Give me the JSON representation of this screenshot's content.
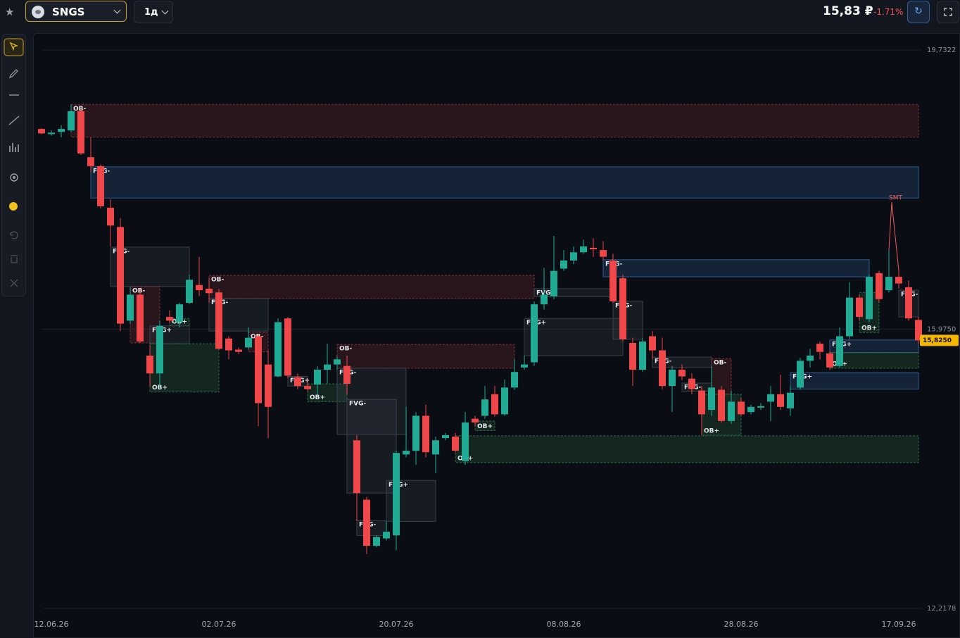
{
  "header": {
    "ticker": "SNGS",
    "timeframe": "1д",
    "price": "15,83 ₽",
    "change": "-1.71%"
  },
  "chart_data": {
    "type": "candlestick",
    "categories": [
      null,
      "12.06.26",
      null,
      null,
      null,
      null,
      null,
      null,
      null,
      null,
      null,
      null,
      null,
      null,
      null,
      null,
      null,
      null,
      "02.07.26",
      null,
      null,
      null,
      null,
      null,
      null,
      null,
      null,
      null,
      null,
      null,
      null,
      null,
      null,
      null,
      null,
      null,
      "20.07.26",
      null,
      null,
      null,
      null,
      null,
      null,
      null,
      null,
      null,
      null,
      null,
      null,
      null,
      null,
      null,
      null,
      "08.08.26",
      null,
      null,
      null,
      null,
      null,
      null,
      null,
      null,
      null,
      null,
      null,
      null,
      null,
      null,
      null,
      null,
      null,
      "28.08.26",
      null,
      null,
      null,
      null,
      null,
      null,
      null,
      null,
      null,
      null,
      null,
      null,
      null,
      null,
      null,
      "17.09.26",
      null,
      null
    ],
    "open": [
      18.67,
      18.6,
      18.63,
      18.65,
      18.91,
      18.29,
      18.17,
      17.61,
      17.35,
      16.09,
      16.44,
      15.62,
      15.38,
      16.14,
      16.07,
      16.33,
      16.57,
      16.52,
      16.47,
      15.85,
      15.7,
      15.73,
      15.88,
      15.5,
      15.34,
      16.12,
      15.33,
      15.21,
      15.23,
      15.43,
      15.5,
      15.48,
      14.48,
      13.68,
      13.06,
      13.16,
      13.2,
      14.29,
      14.34,
      14.81,
      14.29,
      14.51,
      14.53,
      14.2,
      14.77,
      14.81,
      15.1,
      14.83,
      15.19,
      15.46,
      15.53,
      16.31,
      16.42,
      16.79,
      16.9,
      17.01,
      17.07,
      17.04,
      16.9,
      16.66,
      15.79,
      15.43,
      15.88,
      15.69,
      15.21,
      15.43,
      15.31,
      15.15,
      14.89,
      15.16,
      14.74,
      15.0,
      14.86,
      14.92,
      15.0,
      15.1,
      14.91,
      15.19,
      15.55,
      15.78,
      15.65,
      15.48,
      15.88,
      16.4,
      16.11,
      16.73,
      16.5,
      16.68,
      16.54,
      16.1
    ],
    "high": [
      18.68,
      18.65,
      18.72,
      19.0,
      18.94,
      18.56,
      18.19,
      17.72,
      17.47,
      16.54,
      16.52,
      15.76,
      16.09,
      16.23,
      16.33,
      16.71,
      16.95,
      16.66,
      16.52,
      15.88,
      15.73,
      16.0,
      15.9,
      15.69,
      16.12,
      16.14,
      15.38,
      15.29,
      15.48,
      15.78,
      15.62,
      15.62,
      14.55,
      13.72,
      13.2,
      13.39,
      14.34,
      14.93,
      14.86,
      14.96,
      14.53,
      14.58,
      14.58,
      14.86,
      14.81,
      15.21,
      15.21,
      15.3,
      15.57,
      15.62,
      16.35,
      16.8,
      17.23,
      17.04,
      17.09,
      17.18,
      17.2,
      17.16,
      16.99,
      16.71,
      15.86,
      15.86,
      15.95,
      15.86,
      15.48,
      15.5,
      15.38,
      15.21,
      15.48,
      15.21,
      15.15,
      15.05,
      14.96,
      14.98,
      15.21,
      15.36,
      15.21,
      15.59,
      15.71,
      15.81,
      15.69,
      16.0,
      16.61,
      16.44,
      16.71,
      16.76,
      17.04,
      16.76,
      16.63,
      16.14
    ],
    "low": [
      18.6,
      18.58,
      18.56,
      18.63,
      18.32,
      18.09,
      17.6,
      17.09,
      15.95,
      16.05,
      15.79,
      15.21,
      15.19,
      16.05,
      16.0,
      16.31,
      16.42,
      16.33,
      15.7,
      15.57,
      15.64,
      15.71,
      14.67,
      14.51,
      15.33,
      15.32,
      15.17,
      15.15,
      15.1,
      15.24,
      15.43,
      15.1,
      13.39,
      12.95,
      13.04,
      13.13,
      13.0,
      14.25,
      14.15,
      14.25,
      14.04,
      14.48,
      14.32,
      14.15,
      14.67,
      14.77,
      14.8,
      14.81,
      15.16,
      15.43,
      15.48,
      16.24,
      16.38,
      16.76,
      16.85,
      16.99,
      16.95,
      16.9,
      16.33,
      15.81,
      15.21,
      15.4,
      15.57,
      15.17,
      14.86,
      15.29,
      15.1,
      14.55,
      14.81,
      14.72,
      14.7,
      14.81,
      14.83,
      14.89,
      14.74,
      14.89,
      14.81,
      15.16,
      15.46,
      15.57,
      15.43,
      15.46,
      15.84,
      16.09,
      16.07,
      16.33,
      16.47,
      16.52,
      16.09,
      15.78
    ],
    "close": [
      18.61,
      18.62,
      18.67,
      18.91,
      18.34,
      18.17,
      17.63,
      17.37,
      16.05,
      16.44,
      15.81,
      15.38,
      16.02,
      16.09,
      16.31,
      16.64,
      16.5,
      16.46,
      15.71,
      15.69,
      15.67,
      15.86,
      14.98,
      14.93,
      16.07,
      15.35,
      15.21,
      15.17,
      15.43,
      15.5,
      15.57,
      15.24,
      13.77,
      13.06,
      13.18,
      13.25,
      14.31,
      14.34,
      14.81,
      14.32,
      14.48,
      14.55,
      14.34,
      14.72,
      14.72,
      15.03,
      14.83,
      15.19,
      15.4,
      15.5,
      16.31,
      16.44,
      16.76,
      16.9,
      17.01,
      17.09,
      17.05,
      16.95,
      16.35,
      15.84,
      15.43,
      15.81,
      15.69,
      15.21,
      15.43,
      15.34,
      15.17,
      14.83,
      15.19,
      14.74,
      15.0,
      14.83,
      14.93,
      14.94,
      15.1,
      14.93,
      15.12,
      15.55,
      15.62,
      15.67,
      15.46,
      15.88,
      16.4,
      16.14,
      16.68,
      16.38,
      16.68,
      16.59,
      16.12,
      15.825
    ],
    "up_color": "#22ab94",
    "down_color": "#f0474a",
    "ylim": [
      12.2178,
      19.7322
    ],
    "yticks": [
      {
        "value": 12.2178,
        "label": "12,2178"
      },
      {
        "value": 15.975,
        "label": "15,9750"
      },
      {
        "value": 19.7322,
        "label": "19,7322"
      }
    ],
    "grid": true,
    "last_price": {
      "value": 15.825,
      "label": "15,8250",
      "color": "#f5b800"
    },
    "zones": [
      {
        "label": "OB-",
        "from": 3,
        "to": 89,
        "top": 19.0,
        "bottom": 18.56,
        "color": "#7a3038"
      },
      {
        "label": "FVG-",
        "from": 5,
        "to": 89,
        "top": 18.16,
        "bottom": 17.74,
        "color": "#2e5d94"
      },
      {
        "label": "FVG-",
        "from": 7,
        "to": 15,
        "top": 17.08,
        "bottom": 16.55,
        "color": "#3b404b"
      },
      {
        "label": "OB-",
        "from": 9,
        "to": 12,
        "top": 16.55,
        "bottom": 15.79,
        "color": "#7a3038"
      },
      {
        "label": "OB+",
        "from": 13,
        "to": 15,
        "top": 16.12,
        "bottom": 16.02,
        "color": "#2a6b45"
      },
      {
        "label": "FVG+",
        "from": 11,
        "to": 15,
        "top": 16.02,
        "bottom": 15.78,
        "color": "#3b404b"
      },
      {
        "label": "OB+",
        "from": 11,
        "to": 18,
        "top": 15.78,
        "bottom": 15.13,
        "color": "#2a6b45"
      },
      {
        "label": "OB-",
        "from": 17,
        "to": 50,
        "top": 16.7,
        "bottom": 16.39,
        "color": "#7a3038"
      },
      {
        "label": "FVG-",
        "from": 17,
        "to": 23,
        "top": 16.39,
        "bottom": 15.95,
        "color": "#3b404b"
      },
      {
        "label": "OB-",
        "from": 21,
        "to": 23,
        "top": 15.93,
        "bottom": 15.67,
        "color": "#7a3038"
      },
      {
        "label": "FVG+",
        "from": 25,
        "to": 27,
        "top": 15.34,
        "bottom": 15.21,
        "color": "#3b404b"
      },
      {
        "label": "OB+",
        "from": 27,
        "to": 31,
        "top": 15.24,
        "bottom": 15.0,
        "color": "#2a6b45"
      },
      {
        "label": "OB-",
        "from": 30,
        "to": 48,
        "top": 15.77,
        "bottom": 15.45,
        "color": "#7a3038"
      },
      {
        "label": "FVG-",
        "from": 30,
        "to": 37,
        "top": 15.45,
        "bottom": 14.56,
        "color": "#3b404b"
      },
      {
        "label": "FVG-",
        "from": 31,
        "to": 36,
        "top": 15.03,
        "bottom": 13.77,
        "color": "#3b404b"
      },
      {
        "label": "FVG-",
        "from": 32,
        "to": 35,
        "top": 13.4,
        "bottom": 13.2,
        "color": "#3b404b"
      },
      {
        "label": "FVG+",
        "from": 35,
        "to": 40,
        "top": 13.94,
        "bottom": 13.39,
        "color": "#3b404b"
      },
      {
        "label": "OB+",
        "from": 42,
        "to": 89,
        "top": 14.54,
        "bottom": 14.18,
        "color": "#2a6b45"
      },
      {
        "label": "OB+",
        "from": 44,
        "to": 46,
        "top": 14.74,
        "bottom": 14.61,
        "color": "#2a6b45"
      },
      {
        "label": "FVG+",
        "from": 49,
        "to": 59,
        "top": 16.12,
        "bottom": 15.62,
        "color": "#3b404b"
      },
      {
        "label": "FVG+",
        "from": 50,
        "to": 58,
        "top": 16.52,
        "bottom": 16.41,
        "color": "#3b404b"
      },
      {
        "label": "FVG-",
        "from": 57,
        "to": 84,
        "top": 16.91,
        "bottom": 16.68,
        "color": "#2e5d94"
      },
      {
        "label": "FVG-",
        "from": 58,
        "to": 61,
        "top": 16.35,
        "bottom": 15.84,
        "color": "#3b404b"
      },
      {
        "label": "FVG-",
        "from": 62,
        "to": 68,
        "top": 15.6,
        "bottom": 15.46,
        "color": "#3b404b"
      },
      {
        "label": "OB-",
        "from": 68,
        "to": 70,
        "top": 15.58,
        "bottom": 15.1,
        "color": "#7a3038"
      },
      {
        "label": "FVG-",
        "from": 65,
        "to": 68,
        "top": 15.25,
        "bottom": 15.14,
        "color": "#3b404b"
      },
      {
        "label": "OB+",
        "from": 67,
        "to": 71,
        "top": 15.1,
        "bottom": 14.55,
        "color": "#2a6b45"
      },
      {
        "label": "FVG+",
        "from": 76,
        "to": 89,
        "top": 15.39,
        "bottom": 15.17,
        "color": "#2e5d94"
      },
      {
        "label": "FVG+",
        "from": 80,
        "to": 89,
        "top": 15.83,
        "bottom": 15.66,
        "color": "#2e5d94"
      },
      {
        "label": "OB+",
        "from": 80,
        "to": 89,
        "top": 15.66,
        "bottom": 15.45,
        "color": "#2a6b45"
      },
      {
        "label": "OB+",
        "from": 83,
        "to": 85,
        "top": 16.47,
        "bottom": 15.93,
        "color": "#2a6b45"
      },
      {
        "label": "FVG-",
        "from": 87,
        "to": 89,
        "top": 16.5,
        "bottom": 16.14,
        "color": "#3b404b"
      }
    ],
    "annotations": [
      {
        "label": "SMT",
        "index": 86,
        "price": 17.74,
        "links": [
          86,
          87
        ],
        "color": "#f05a5a"
      }
    ]
  }
}
